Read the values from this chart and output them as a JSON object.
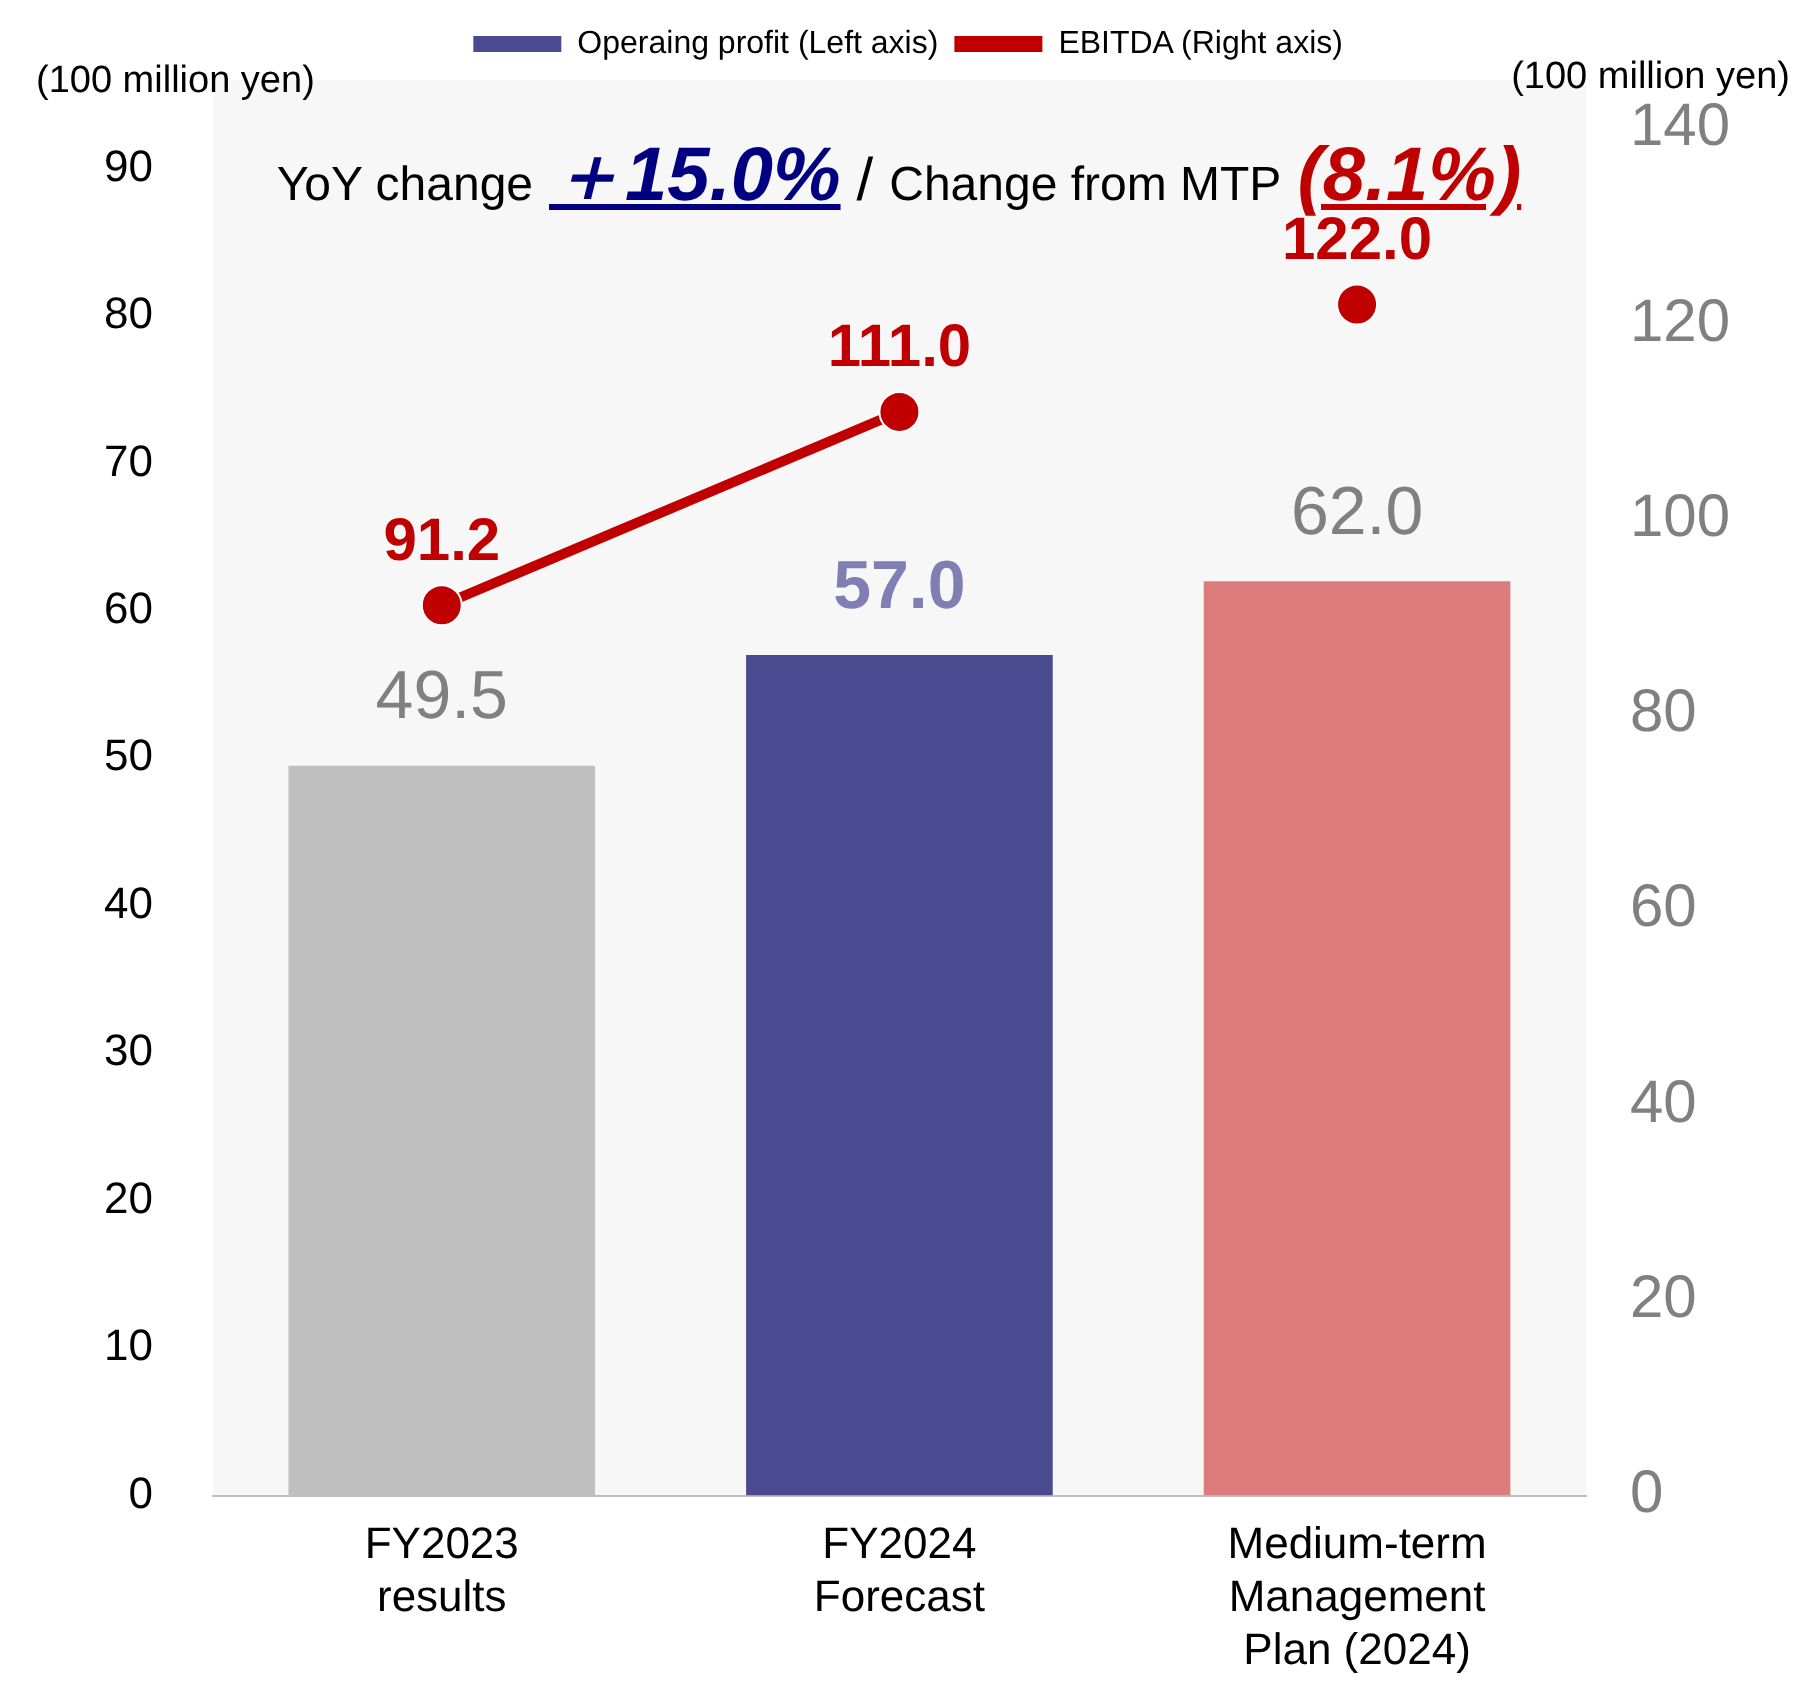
{
  "chart_data": {
    "type": "bar",
    "categories": [
      "FY2023\nresults",
      "FY2024\nForecast",
      "Medium-term\nManagement\nPlan (2024)"
    ],
    "series": [
      {
        "name": "Operaing profit (Left axis)",
        "color": "#4a4a90",
        "colors": [
          "#bfbfbf",
          "#4a4a90",
          "#dc7c7c"
        ],
        "values": [
          49.5,
          57.0,
          62.0
        ],
        "value_labels": [
          "49.5",
          "57.0",
          "62.0"
        ]
      },
      {
        "name": "EBITDA (Right axis)",
        "type": "line",
        "axis": "y2",
        "color": "#c00000",
        "values": [
          91.2,
          111.0,
          null
        ],
        "value_labels": [
          "91.2",
          "111.0",
          null
        ]
      },
      {
        "type": "scatter",
        "axis": "y2",
        "color": "#c00000",
        "values": [
          null,
          null,
          122.0
        ],
        "value_labels": [
          null,
          null,
          "122.0"
        ]
      }
    ],
    "ylabel": "(100 million yen)",
    "y2label": "(100 million yen)",
    "ylim": [
      0,
      96
    ],
    "yticks": [
      0,
      10,
      20,
      30,
      40,
      50,
      60,
      70,
      80,
      90
    ],
    "y2lim": [
      0,
      145
    ],
    "y2ticks": [
      0,
      20,
      40,
      60,
      80,
      100,
      120,
      140
    ],
    "annotations": [
      "YoY change",
      "＋15.0%",
      "/",
      "Change from MTP",
      "(8.1%)"
    ],
    "marker": "circle",
    "legend": "top",
    "grid": false
  }
}
